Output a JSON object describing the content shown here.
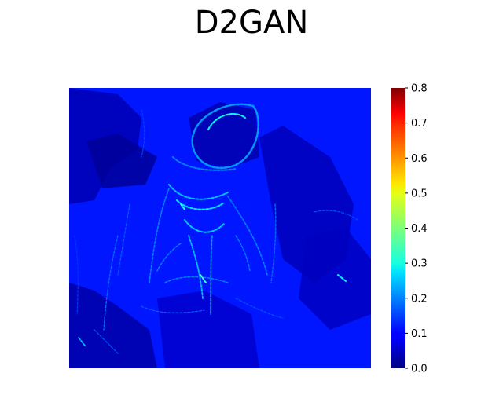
{
  "chart_data": {
    "type": "heatmap",
    "title": "D2GAN",
    "colormap": "jet",
    "colorbar": {
      "min": 0.0,
      "max": 0.8,
      "ticks": [
        "0.0",
        "0.1",
        "0.2",
        "0.3",
        "0.4",
        "0.5",
        "0.6",
        "0.7",
        "0.8"
      ]
    },
    "axes_visible": false,
    "background_level": 0.08,
    "highlight_level_range": [
      0.2,
      0.35
    ]
  }
}
